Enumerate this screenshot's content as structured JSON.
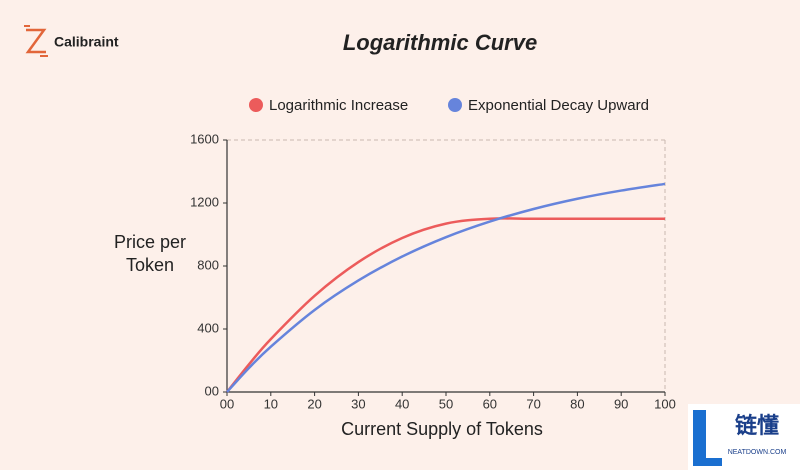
{
  "brand": "Calibraint",
  "watermark": {
    "text": "链懂",
    "subtext": "NEATDOWN.COM"
  },
  "chart_data": {
    "type": "line",
    "title": "Logarithmic Curve",
    "x_label": "Current Supply of Tokens",
    "y_label": [
      "Price per",
      "Token"
    ],
    "x": [
      0,
      5,
      10,
      20,
      30,
      40,
      50,
      60,
      70,
      80,
      90,
      100
    ],
    "series": [
      {
        "name": "Logarithmic Increase",
        "color": "#ec5b5b",
        "values": [
          0,
          175,
          336,
          611,
          825,
          978,
          1069,
          1100,
          1100,
          1100,
          1100,
          1100
        ]
      },
      {
        "name": "Exponential Decay Upward",
        "color": "#6684dc",
        "values": [
          0,
          152,
          288,
          521,
          708,
          860,
          983,
          1082,
          1162,
          1227,
          1279,
          1321
        ]
      }
    ],
    "xlim": [
      0,
      100
    ],
    "xticks": [
      {
        "value": 0,
        "label": "00"
      },
      10,
      20,
      30,
      40,
      50,
      60,
      70,
      80,
      90,
      100
    ],
    "ylim": [
      0,
      1600
    ],
    "yticks": [
      {
        "value": 0,
        "label": "00"
      },
      400,
      800,
      1200,
      1600
    ],
    "legend": "top"
  }
}
